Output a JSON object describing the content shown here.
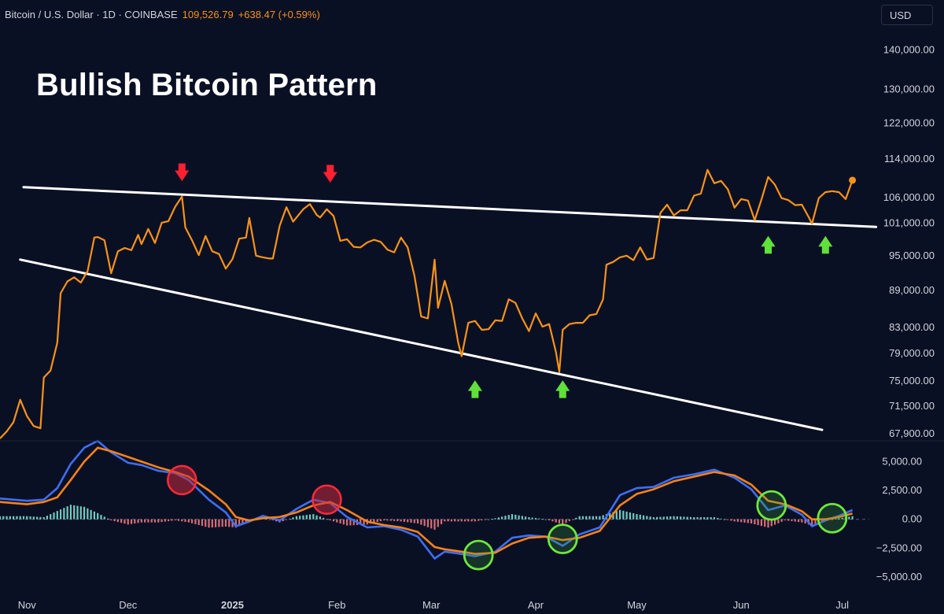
{
  "header": {
    "symbol": "Bitcoin / U.S. Dollar · 1D · COINBASE",
    "price": "109,526.79",
    "change": "+638.47 (+0.59%)"
  },
  "currency_button": "USD",
  "title": "Bullish Bitcoin Pattern",
  "colors": {
    "background": "#0a1024",
    "price_line": "#f7931a",
    "trendline": "#ffffff",
    "macd_line": "#3d6ef5",
    "signal_line": "#f7821a",
    "hist_positive": "#7fe0d0",
    "hist_negative": "#f07880",
    "down_arrow": "#ff2030",
    "up_arrow": "#5fe03a"
  },
  "chart_data": [
    {
      "type": "line",
      "name": "price",
      "y_scale": "log",
      "ylim": [
        67000,
        145000
      ],
      "yticks": [
        140000,
        130000,
        122000,
        114000,
        106000,
        101000,
        95000,
        89000,
        83000,
        79000,
        75000,
        71500,
        67900
      ],
      "ytick_labels": [
        "140,000.00",
        "130,000.00",
        "122,000.00",
        "114,000.00",
        "106,000.00",
        "101,000.00",
        "95,000.00",
        "89,000.00",
        "83,000.00",
        "79,000.00",
        "75,000.00",
        "71,500.00",
        "67,900.00"
      ],
      "xlim": [
        "2024-10-24",
        "2025-07-09"
      ],
      "x_ticks": [
        {
          "date": "2024-11-01",
          "label": "Nov"
        },
        {
          "date": "2024-12-01",
          "label": "Dec"
        },
        {
          "date": "2025-01-01",
          "label": "2025"
        },
        {
          "date": "2025-02-01",
          "label": "Feb"
        },
        {
          "date": "2025-03-01",
          "label": "Mar"
        },
        {
          "date": "2025-04-01",
          "label": "Apr"
        },
        {
          "date": "2025-05-01",
          "label": "May"
        },
        {
          "date": "2025-06-01",
          "label": "Jun"
        },
        {
          "date": "2025-07-01",
          "label": "Jul"
        }
      ],
      "points": [
        [
          "2024-10-24",
          67300
        ],
        [
          "2024-10-26",
          68200
        ],
        [
          "2024-10-28",
          69400
        ],
        [
          "2024-10-30",
          72400
        ],
        [
          "2024-11-01",
          70200
        ],
        [
          "2024-11-03",
          68900
        ],
        [
          "2024-11-05",
          68600
        ],
        [
          "2024-11-06",
          75500
        ],
        [
          "2024-11-08",
          76500
        ],
        [
          "2024-11-10",
          80600
        ],
        [
          "2024-11-11",
          88500
        ],
        [
          "2024-11-13",
          90500
        ],
        [
          "2024-11-15",
          91200
        ],
        [
          "2024-11-17",
          90300
        ],
        [
          "2024-11-19",
          92300
        ],
        [
          "2024-11-21",
          98300
        ],
        [
          "2024-11-22",
          98400
        ],
        [
          "2024-11-24",
          97800
        ],
        [
          "2024-11-26",
          91900
        ],
        [
          "2024-11-28",
          95800
        ],
        [
          "2024-11-30",
          96400
        ],
        [
          "2024-12-02",
          96000
        ],
        [
          "2024-12-04",
          98800
        ],
        [
          "2024-12-05",
          97100
        ],
        [
          "2024-12-07",
          99900
        ],
        [
          "2024-12-09",
          97300
        ],
        [
          "2024-12-11",
          101100
        ],
        [
          "2024-12-13",
          101400
        ],
        [
          "2024-12-15",
          104200
        ],
        [
          "2024-12-17",
          106200
        ],
        [
          "2024-12-18",
          100200
        ],
        [
          "2024-12-20",
          97800
        ],
        [
          "2024-12-22",
          95100
        ],
        [
          "2024-12-24",
          98600
        ],
        [
          "2024-12-26",
          95800
        ],
        [
          "2024-12-28",
          95300
        ],
        [
          "2024-12-30",
          92700
        ],
        [
          "2025-01-01",
          94400
        ],
        [
          "2025-01-03",
          98100
        ],
        [
          "2025-01-05",
          98300
        ],
        [
          "2025-01-06",
          102000
        ],
        [
          "2025-01-08",
          95000
        ],
        [
          "2025-01-10",
          94700
        ],
        [
          "2025-01-12",
          94500
        ],
        [
          "2025-01-13",
          94500
        ],
        [
          "2025-01-15",
          100500
        ],
        [
          "2025-01-17",
          104100
        ],
        [
          "2025-01-19",
          101300
        ],
        [
          "2025-01-20",
          102100
        ],
        [
          "2025-01-22",
          103700
        ],
        [
          "2025-01-24",
          104700
        ],
        [
          "2025-01-26",
          102600
        ],
        [
          "2025-01-27",
          102100
        ],
        [
          "2025-01-29",
          103700
        ],
        [
          "2025-01-31",
          102400
        ],
        [
          "2025-02-02",
          97700
        ],
        [
          "2025-02-04",
          98000
        ],
        [
          "2025-02-06",
          96600
        ],
        [
          "2025-02-08",
          96500
        ],
        [
          "2025-02-10",
          97400
        ],
        [
          "2025-02-12",
          97900
        ],
        [
          "2025-02-14",
          97500
        ],
        [
          "2025-02-16",
          96100
        ],
        [
          "2025-02-18",
          95600
        ],
        [
          "2025-02-20",
          98300
        ],
        [
          "2025-02-22",
          96500
        ],
        [
          "2025-02-24",
          91500
        ],
        [
          "2025-02-26",
          84700
        ],
        [
          "2025-02-28",
          84400
        ],
        [
          "2025-03-02",
          94300
        ],
        [
          "2025-03-03",
          86100
        ],
        [
          "2025-03-05",
          90600
        ],
        [
          "2025-03-07",
          86700
        ],
        [
          "2025-03-09",
          80600
        ],
        [
          "2025-03-10",
          78600
        ],
        [
          "2025-03-12",
          83700
        ],
        [
          "2025-03-14",
          84000
        ],
        [
          "2025-03-16",
          82600
        ],
        [
          "2025-03-18",
          82700
        ],
        [
          "2025-03-20",
          84100
        ],
        [
          "2025-03-22",
          84000
        ],
        [
          "2025-03-24",
          87500
        ],
        [
          "2025-03-26",
          86900
        ],
        [
          "2025-03-28",
          84400
        ],
        [
          "2025-03-30",
          82400
        ],
        [
          "2025-04-01",
          85200
        ],
        [
          "2025-04-03",
          83100
        ],
        [
          "2025-04-05",
          83500
        ],
        [
          "2025-04-07",
          79200
        ],
        [
          "2025-04-08",
          76300
        ],
        [
          "2025-04-09",
          82600
        ],
        [
          "2025-04-11",
          83500
        ],
        [
          "2025-04-13",
          83700
        ],
        [
          "2025-04-15",
          83700
        ],
        [
          "2025-04-17",
          84900
        ],
        [
          "2025-04-19",
          85100
        ],
        [
          "2025-04-21",
          87500
        ],
        [
          "2025-04-22",
          93400
        ],
        [
          "2025-04-24",
          93900
        ],
        [
          "2025-04-26",
          94700
        ],
        [
          "2025-04-28",
          95000
        ],
        [
          "2025-04-30",
          94200
        ],
        [
          "2025-05-02",
          96500
        ],
        [
          "2025-05-04",
          94300
        ],
        [
          "2025-05-06",
          94600
        ],
        [
          "2025-05-08",
          103000
        ],
        [
          "2025-05-10",
          104600
        ],
        [
          "2025-05-12",
          102500
        ],
        [
          "2025-05-14",
          103500
        ],
        [
          "2025-05-16",
          103500
        ],
        [
          "2025-05-18",
          106400
        ],
        [
          "2025-05-20",
          106800
        ],
        [
          "2025-05-22",
          111700
        ],
        [
          "2025-05-24",
          108900
        ],
        [
          "2025-05-26",
          109400
        ],
        [
          "2025-05-28",
          107700
        ],
        [
          "2025-05-30",
          104000
        ],
        [
          "2025-06-01",
          105700
        ],
        [
          "2025-06-03",
          105400
        ],
        [
          "2025-06-05",
          101600
        ],
        [
          "2025-06-07",
          105600
        ],
        [
          "2025-06-09",
          110200
        ],
        [
          "2025-06-11",
          108600
        ],
        [
          "2025-06-13",
          105900
        ],
        [
          "2025-06-15",
          105500
        ],
        [
          "2025-06-17",
          104500
        ],
        [
          "2025-06-19",
          104600
        ],
        [
          "2025-06-21",
          102200
        ],
        [
          "2025-06-22",
          100900
        ],
        [
          "2025-06-24",
          105900
        ],
        [
          "2025-06-26",
          107100
        ],
        [
          "2025-06-28",
          107300
        ],
        [
          "2025-06-30",
          107100
        ],
        [
          "2025-07-02",
          105700
        ],
        [
          "2025-07-04",
          109526
        ]
      ],
      "annotations": {
        "resistance_line": [
          [
            "2024-10-31",
            108100
          ],
          [
            "2025-07-11",
            100300
          ]
        ],
        "support_line": [
          [
            "2024-10-30",
            94300
          ],
          [
            "2025-06-25",
            68400
          ]
        ],
        "down_arrows": [
          [
            "2024-12-17",
            110800
          ],
          [
            "2025-01-30",
            110500
          ]
        ],
        "up_arrows": [
          [
            "2025-03-14",
            74100
          ],
          [
            "2025-04-09",
            74100
          ],
          [
            "2025-06-09",
            97300
          ],
          [
            "2025-06-26",
            97300
          ]
        ]
      }
    },
    {
      "type": "line",
      "name": "MACD",
      "ylim": [
        -6500,
        6800
      ],
      "yticks": [
        5000,
        2500,
        0,
        -2500,
        -5000
      ],
      "ytick_labels": [
        "5,000.00",
        "2,500.00",
        "0.00",
        "−2,500.00",
        "−5,000.00"
      ],
      "macd": [
        [
          "2024-10-24",
          1800
        ],
        [
          "2024-11-01",
          1600
        ],
        [
          "2024-11-06",
          1700
        ],
        [
          "2024-11-10",
          2700
        ],
        [
          "2024-11-14",
          4800
        ],
        [
          "2024-11-18",
          6200
        ],
        [
          "2024-11-22",
          6800
        ],
        [
          "2024-11-26",
          5800
        ],
        [
          "2024-12-01",
          4900
        ],
        [
          "2024-12-05",
          4700
        ],
        [
          "2024-12-10",
          4200
        ],
        [
          "2024-12-15",
          4000
        ],
        [
          "2024-12-19",
          3400
        ],
        [
          "2024-12-25",
          1700
        ],
        [
          "2024-12-30",
          600
        ],
        [
          "2025-01-02",
          -600
        ],
        [
          "2025-01-06",
          -200
        ],
        [
          "2025-01-10",
          300
        ],
        [
          "2025-01-15",
          -100
        ],
        [
          "2025-01-20",
          900
        ],
        [
          "2025-01-25",
          1700
        ],
        [
          "2025-01-30",
          1400
        ],
        [
          "2025-02-04",
          200
        ],
        [
          "2025-02-10",
          -700
        ],
        [
          "2025-02-15",
          -600
        ],
        [
          "2025-02-20",
          -900
        ],
        [
          "2025-02-25",
          -1500
        ],
        [
          "2025-03-02",
          -3400
        ],
        [
          "2025-03-05",
          -2800
        ],
        [
          "2025-03-10",
          -3000
        ],
        [
          "2025-03-14",
          -3200
        ],
        [
          "2025-03-20",
          -2800
        ],
        [
          "2025-03-25",
          -1600
        ],
        [
          "2025-03-30",
          -1400
        ],
        [
          "2025-04-04",
          -1500
        ],
        [
          "2025-04-09",
          -2300
        ],
        [
          "2025-04-14",
          -1300
        ],
        [
          "2025-04-20",
          -700
        ],
        [
          "2025-04-26",
          2100
        ],
        [
          "2025-05-01",
          2700
        ],
        [
          "2025-05-06",
          2800
        ],
        [
          "2025-05-12",
          3600
        ],
        [
          "2025-05-18",
          3900
        ],
        [
          "2025-05-24",
          4300
        ],
        [
          "2025-05-30",
          3600
        ],
        [
          "2025-06-04",
          2600
        ],
        [
          "2025-06-09",
          800
        ],
        [
          "2025-06-14",
          1200
        ],
        [
          "2025-06-19",
          400
        ],
        [
          "2025-06-22",
          -600
        ],
        [
          "2025-06-26",
          -100
        ],
        [
          "2025-06-30",
          300
        ],
        [
          "2025-07-04",
          800
        ]
      ],
      "signal": [
        [
          "2024-10-24",
          1500
        ],
        [
          "2024-11-01",
          1300
        ],
        [
          "2024-11-06",
          1500
        ],
        [
          "2024-11-10",
          1900
        ],
        [
          "2024-11-14",
          3400
        ],
        [
          "2024-11-18",
          5000
        ],
        [
          "2024-11-22",
          6200
        ],
        [
          "2024-11-26",
          5900
        ],
        [
          "2024-12-01",
          5400
        ],
        [
          "2024-12-05",
          5000
        ],
        [
          "2024-12-10",
          4500
        ],
        [
          "2024-12-15",
          4100
        ],
        [
          "2024-12-19",
          3700
        ],
        [
          "2024-12-25",
          2500
        ],
        [
          "2024-12-30",
          1300
        ],
        [
          "2025-01-02",
          200
        ],
        [
          "2025-01-06",
          -100
        ],
        [
          "2025-01-10",
          100
        ],
        [
          "2025-01-15",
          200
        ],
        [
          "2025-01-20",
          600
        ],
        [
          "2025-01-25",
          1200
        ],
        [
          "2025-01-30",
          1500
        ],
        [
          "2025-02-04",
          800
        ],
        [
          "2025-02-10",
          -200
        ],
        [
          "2025-02-15",
          -500
        ],
        [
          "2025-02-20",
          -700
        ],
        [
          "2025-02-25",
          -1100
        ],
        [
          "2025-03-02",
          -2400
        ],
        [
          "2025-03-05",
          -2600
        ],
        [
          "2025-03-10",
          -2800
        ],
        [
          "2025-03-14",
          -3000
        ],
        [
          "2025-03-20",
          -2900
        ],
        [
          "2025-03-25",
          -2100
        ],
        [
          "2025-03-30",
          -1600
        ],
        [
          "2025-04-04",
          -1500
        ],
        [
          "2025-04-09",
          -1800
        ],
        [
          "2025-04-14",
          -1600
        ],
        [
          "2025-04-20",
          -1000
        ],
        [
          "2025-04-26",
          1200
        ],
        [
          "2025-05-01",
          2200
        ],
        [
          "2025-05-06",
          2600
        ],
        [
          "2025-05-12",
          3300
        ],
        [
          "2025-05-18",
          3700
        ],
        [
          "2025-05-24",
          4100
        ],
        [
          "2025-05-30",
          3800
        ],
        [
          "2025-06-04",
          3000
        ],
        [
          "2025-06-09",
          1600
        ],
        [
          "2025-06-14",
          1300
        ],
        [
          "2025-06-19",
          700
        ],
        [
          "2025-06-22",
          0
        ],
        [
          "2025-06-26",
          0
        ],
        [
          "2025-06-30",
          200
        ],
        [
          "2025-07-04",
          500
        ]
      ],
      "annotations": {
        "red_circles": [
          [
            "2024-12-17",
            3400
          ],
          [
            "2025-01-29",
            1700
          ]
        ],
        "green_circles": [
          [
            "2025-03-15",
            -3100
          ],
          [
            "2025-04-09",
            -1700
          ],
          [
            "2025-06-10",
            1200
          ],
          [
            "2025-06-28",
            100
          ]
        ]
      }
    }
  ]
}
